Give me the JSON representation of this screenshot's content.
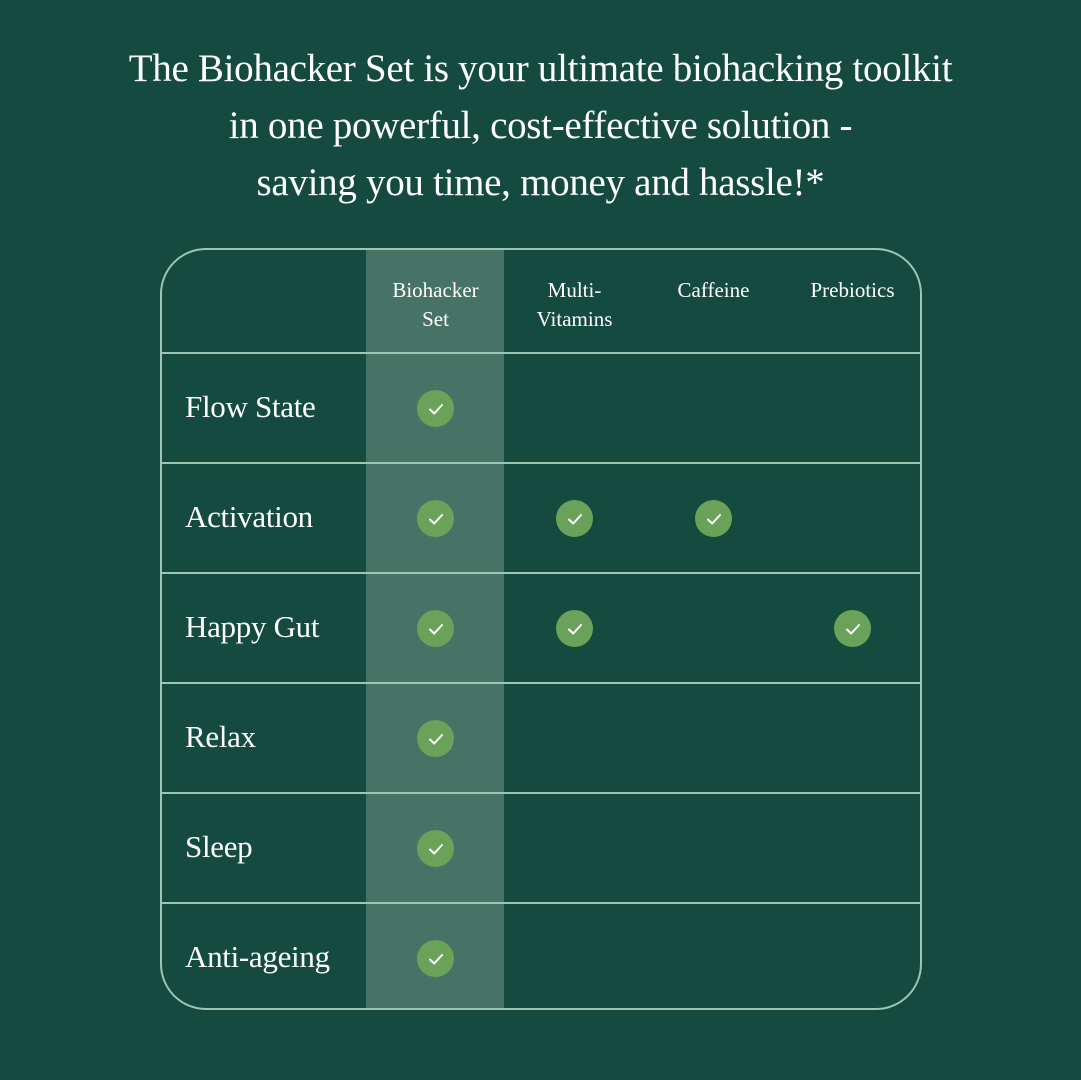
{
  "headline": [
    "The Biohacker Set is your ultimate biohacking toolkit",
    "in one powerful, cost-effective solution -",
    "saving you time, money and hassle!*"
  ],
  "colors": {
    "background": "#144b3e",
    "highlight_column": "#477366",
    "check": "#6aa25a",
    "border": "#9cc5b2"
  },
  "table": {
    "columns": [
      {
        "line1": "Biohacker",
        "line2": "Set",
        "highlighted": true
      },
      {
        "line1": "Multi-",
        "line2": "Vitamins"
      },
      {
        "line1": "Caffeine",
        "line2": ""
      },
      {
        "line1": "Prebiotics",
        "line2": ""
      }
    ],
    "rows": [
      {
        "label": "Flow State",
        "checks": [
          true,
          false,
          false,
          false
        ]
      },
      {
        "label": "Activation",
        "checks": [
          true,
          true,
          true,
          false
        ]
      },
      {
        "label": "Happy Gut",
        "checks": [
          true,
          true,
          false,
          true
        ]
      },
      {
        "label": "Relax",
        "checks": [
          true,
          false,
          false,
          false
        ]
      },
      {
        "label": "Sleep",
        "checks": [
          true,
          false,
          false,
          false
        ]
      },
      {
        "label": "Anti-ageing",
        "checks": [
          true,
          false,
          false,
          false
        ]
      }
    ]
  }
}
